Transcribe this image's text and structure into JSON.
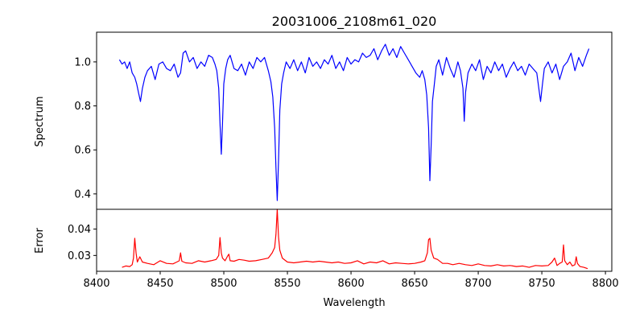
{
  "chart_data": [
    {
      "type": "line",
      "title": "20031006_2108m61_020",
      "xlabel": "",
      "ylabel": "Spectrum",
      "xlim": [
        8400,
        8805
      ],
      "ylim": [
        0.33,
        1.135
      ],
      "yticks": [
        0.4,
        0.6,
        0.8,
        1.0
      ],
      "xticks": [
        8400,
        8450,
        8500,
        8550,
        8600,
        8650,
        8700,
        8750,
        8800
      ],
      "grid": false,
      "series": [
        {
          "color": "#0000ff",
          "x": [
            8418,
            8420,
            8422,
            8424,
            8426,
            8428,
            8430,
            8431.5,
            8433,
            8434.5,
            8436,
            8438,
            8440,
            8443,
            8446,
            8449,
            8452,
            8455,
            8458,
            8461,
            8464,
            8466,
            8468,
            8470,
            8473,
            8476,
            8479,
            8482,
            8485,
            8488,
            8491,
            8493,
            8494.5,
            8496,
            8497,
            8498,
            8499,
            8500,
            8501.5,
            8503,
            8505,
            8508,
            8511,
            8514,
            8517,
            8520,
            8523,
            8526,
            8529,
            8532,
            8535,
            8537,
            8538.5,
            8540,
            8541,
            8542,
            8543,
            8544,
            8545.5,
            8547,
            8549,
            8552,
            8555,
            8558,
            8561,
            8564,
            8567,
            8570,
            8573,
            8576,
            8579,
            8582,
            8585,
            8588,
            8591,
            8594,
            8597,
            8600,
            8603,
            8606,
            8609,
            8612,
            8615,
            8618,
            8621,
            8624,
            8627,
            8630,
            8633,
            8636,
            8639,
            8642,
            8645,
            8648,
            8651,
            8654,
            8656,
            8658,
            8659.5,
            8661,
            8662,
            8663,
            8664,
            8665.5,
            8667,
            8669,
            8672,
            8675,
            8678,
            8681,
            8684,
            8686,
            8688,
            8689,
            8690,
            8692,
            8695,
            8698,
            8701,
            8704,
            8707,
            8710,
            8713,
            8716,
            8719,
            8722,
            8725,
            8728,
            8731,
            8734,
            8737,
            8740,
            8743,
            8746,
            8749,
            8750.5,
            8752,
            8755,
            8758,
            8761,
            8764,
            8767,
            8770,
            8773,
            8776,
            8779,
            8782,
            8785,
            8787
          ],
          "values": [
            1.01,
            0.99,
            1.0,
            0.97,
            1.0,
            0.95,
            0.93,
            0.9,
            0.86,
            0.82,
            0.88,
            0.93,
            0.96,
            0.98,
            0.92,
            0.99,
            1.0,
            0.97,
            0.96,
            0.99,
            0.93,
            0.95,
            1.04,
            1.05,
            1.0,
            1.02,
            0.97,
            1.0,
            0.98,
            1.03,
            1.02,
            0.99,
            0.96,
            0.88,
            0.72,
            0.58,
            0.72,
            0.9,
            0.97,
            1.01,
            1.03,
            0.97,
            0.96,
            0.99,
            0.94,
            1.0,
            0.97,
            1.02,
            1.0,
            1.02,
            0.96,
            0.91,
            0.84,
            0.7,
            0.52,
            0.37,
            0.55,
            0.78,
            0.9,
            0.95,
            1.0,
            0.97,
            1.01,
            0.96,
            1.0,
            0.95,
            1.02,
            0.98,
            1.0,
            0.97,
            1.01,
            0.99,
            1.03,
            0.97,
            1.0,
            0.96,
            1.02,
            0.99,
            1.01,
            1.0,
            1.04,
            1.02,
            1.03,
            1.06,
            1.01,
            1.05,
            1.08,
            1.03,
            1.06,
            1.02,
            1.07,
            1.04,
            1.01,
            0.98,
            0.95,
            0.93,
            0.96,
            0.92,
            0.85,
            0.7,
            0.46,
            0.62,
            0.82,
            0.9,
            0.98,
            1.01,
            0.94,
            1.02,
            0.97,
            0.93,
            1.0,
            0.96,
            0.88,
            0.73,
            0.86,
            0.95,
            0.99,
            0.96,
            1.01,
            0.92,
            0.98,
            0.95,
            1.0,
            0.96,
            0.99,
            0.93,
            0.97,
            1.0,
            0.96,
            0.98,
            0.94,
            0.99,
            0.97,
            0.95,
            0.82,
            0.9,
            0.97,
            1.0,
            0.95,
            0.99,
            0.92,
            0.98,
            1.0,
            1.04,
            0.96,
            1.02,
            0.98,
            1.03,
            1.06
          ]
        }
      ]
    },
    {
      "type": "line",
      "title": "",
      "xlabel": "Wavelength",
      "ylabel": "Error",
      "xlim": [
        8400,
        8805
      ],
      "ylim": [
        0.024,
        0.0475
      ],
      "yticks": [
        0.03,
        0.04
      ],
      "xticks": [
        8400,
        8450,
        8500,
        8550,
        8600,
        8650,
        8700,
        8750,
        8800
      ],
      "grid": false,
      "series": [
        {
          "color": "#ff0000",
          "x": [
            8420,
            8423,
            8426,
            8428,
            8429,
            8430,
            8431,
            8432,
            8434,
            8436,
            8440,
            8445,
            8450,
            8455,
            8460,
            8463,
            8465,
            8466,
            8467,
            8470,
            8475,
            8480,
            8485,
            8490,
            8494,
            8496,
            8497,
            8498,
            8499,
            8501,
            8503,
            8504,
            8505,
            8508,
            8512,
            8516,
            8520,
            8525,
            8530,
            8535,
            8538,
            8540,
            8541,
            8542,
            8543,
            8544,
            8546,
            8550,
            8555,
            8560,
            8565,
            8570,
            8575,
            8580,
            8585,
            8590,
            8595,
            8600,
            8605,
            8610,
            8615,
            8620,
            8625,
            8630,
            8635,
            8640,
            8645,
            8650,
            8655,
            8658,
            8660,
            8661,
            8662,
            8663,
            8665,
            8668,
            8672,
            8676,
            8680,
            8685,
            8690,
            8695,
            8700,
            8705,
            8710,
            8715,
            8720,
            8725,
            8730,
            8735,
            8740,
            8745,
            8750,
            8755,
            8758,
            8760,
            8762,
            8764,
            8766,
            8767,
            8768,
            8770,
            8772,
            8774,
            8776,
            8777,
            8778,
            8780,
            8783,
            8786
          ],
          "values": [
            0.0255,
            0.026,
            0.0258,
            0.0265,
            0.029,
            0.0365,
            0.031,
            0.0275,
            0.0295,
            0.0275,
            0.027,
            0.0265,
            0.028,
            0.027,
            0.0268,
            0.0275,
            0.028,
            0.031,
            0.0278,
            0.0272,
            0.027,
            0.028,
            0.0275,
            0.028,
            0.0285,
            0.03,
            0.0368,
            0.031,
            0.029,
            0.028,
            0.0298,
            0.0305,
            0.028,
            0.0278,
            0.0285,
            0.0282,
            0.0278,
            0.028,
            0.0285,
            0.029,
            0.031,
            0.033,
            0.038,
            0.0475,
            0.037,
            0.032,
            0.029,
            0.0275,
            0.0272,
            0.0275,
            0.0278,
            0.0275,
            0.0278,
            0.0275,
            0.0272,
            0.0275,
            0.027,
            0.0272,
            0.028,
            0.0268,
            0.0275,
            0.0272,
            0.028,
            0.0268,
            0.0272,
            0.027,
            0.0268,
            0.027,
            0.0275,
            0.028,
            0.031,
            0.036,
            0.0365,
            0.032,
            0.029,
            0.0285,
            0.027,
            0.027,
            0.0265,
            0.027,
            0.0265,
            0.0262,
            0.0268,
            0.0262,
            0.026,
            0.0265,
            0.026,
            0.0262,
            0.0258,
            0.026,
            0.0255,
            0.0262,
            0.026,
            0.0262,
            0.0275,
            0.029,
            0.0262,
            0.027,
            0.0275,
            0.034,
            0.028,
            0.0265,
            0.0275,
            0.026,
            0.0265,
            0.0295,
            0.027,
            0.0258,
            0.0255,
            0.025
          ]
        }
      ]
    }
  ]
}
